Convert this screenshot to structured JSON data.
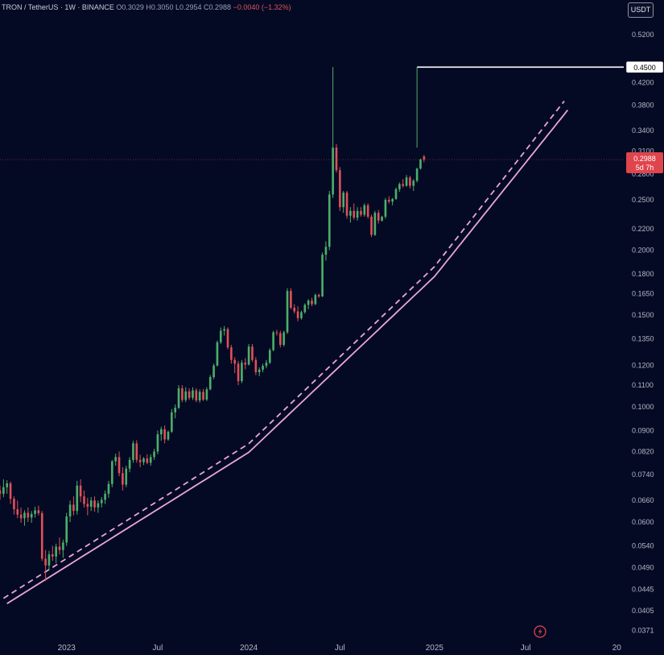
{
  "header": {
    "symbol": "TRON / TetherUS · 1W · BINANCE",
    "open": "O0.3029",
    "high": "H0.3050",
    "low": "L0.2954",
    "close": "C0.2988",
    "change": "−0.0040 (−1.32%)"
  },
  "currency_button": "USDT",
  "colors": {
    "background": "#050a24",
    "up": "#4caf6a",
    "down": "#e05058",
    "channel": "#e9a6d8",
    "level": "#ffffff",
    "last_price": "#e0444c"
  },
  "chart_data": {
    "type": "candlestick",
    "y_scale": "log",
    "ylim": [
      0.0355,
      0.56
    ],
    "xlim": [
      "2022-08-22",
      "2026-01-19"
    ],
    "yticks": [
      "0.5200",
      "0.4500",
      "0.4200",
      "0.3800",
      "0.3400",
      "0.3100",
      "0.2800",
      "0.2500",
      "0.2200",
      "0.2000",
      "0.1800",
      "0.1650",
      "0.1500",
      "0.1350",
      "0.1200",
      "0.1100",
      "0.1000",
      "0.0900",
      "0.0820",
      "0.0740",
      "0.0660",
      "0.0600",
      "0.0540",
      "0.0490",
      "0.0445",
      "0.0405",
      "0.0371"
    ],
    "xticks": [
      "2023",
      "Jul",
      "2024",
      "Jul",
      "2025",
      "Jul",
      "20"
    ],
    "horizontal_level": {
      "price": 0.45,
      "label": "0.4500",
      "from_date": "2024-12-02"
    },
    "last_price": {
      "label": "0.2988",
      "countdown": "5d 7h",
      "price": 0.2988
    },
    "channel": {
      "solid": [
        {
          "date": "2022-09-05",
          "price": 0.0418
        },
        {
          "date": "2024-01-01",
          "price": 0.0817
        },
        {
          "date": "2025-01-06",
          "price": 0.178
        },
        {
          "date": "2025-09-29",
          "price": 0.372
        }
      ],
      "dashed": [
        {
          "date": "2022-08-29",
          "price": 0.0428
        },
        {
          "date": "2024-01-01",
          "price": 0.0849
        },
        {
          "date": "2025-01-06",
          "price": 0.186
        },
        {
          "date": "2025-09-22",
          "price": 0.387
        }
      ]
    },
    "candles_start": "2022-08-22",
    "candles": [
      [
        0.069,
        0.0705,
        0.0662,
        0.068
      ],
      [
        0.068,
        0.0725,
        0.067,
        0.07
      ],
      [
        0.07,
        0.0722,
        0.068,
        0.0712
      ],
      [
        0.0712,
        0.0718,
        0.065,
        0.0665
      ],
      [
        0.0665,
        0.0672,
        0.062,
        0.0635
      ],
      [
        0.0635,
        0.066,
        0.061,
        0.062
      ],
      [
        0.062,
        0.064,
        0.0598,
        0.061
      ],
      [
        0.061,
        0.0632,
        0.059,
        0.0625
      ],
      [
        0.0625,
        0.064,
        0.06,
        0.0612
      ],
      [
        0.0612,
        0.063,
        0.0598,
        0.0622
      ],
      [
        0.0622,
        0.0642,
        0.0612,
        0.0632
      ],
      [
        0.0632,
        0.0645,
        0.0618,
        0.0624
      ],
      [
        0.0624,
        0.063,
        0.0505,
        0.051
      ],
      [
        0.051,
        0.053,
        0.0462,
        0.0495
      ],
      [
        0.0495,
        0.0528,
        0.0485,
        0.052
      ],
      [
        0.052,
        0.054,
        0.0505,
        0.0515
      ],
      [
        0.0515,
        0.0545,
        0.05,
        0.0538
      ],
      [
        0.0538,
        0.056,
        0.052,
        0.053
      ],
      [
        0.053,
        0.0555,
        0.0512,
        0.0548
      ],
      [
        0.0548,
        0.0625,
        0.054,
        0.0615
      ],
      [
        0.0615,
        0.066,
        0.06,
        0.0648
      ],
      [
        0.0648,
        0.0672,
        0.0618,
        0.063
      ],
      [
        0.063,
        0.072,
        0.062,
        0.0705
      ],
      [
        0.0705,
        0.0725,
        0.0655,
        0.0672
      ],
      [
        0.0672,
        0.069,
        0.064,
        0.065
      ],
      [
        0.065,
        0.0668,
        0.0618,
        0.0642
      ],
      [
        0.0642,
        0.067,
        0.063,
        0.066
      ],
      [
        0.066,
        0.0672,
        0.0628,
        0.064
      ],
      [
        0.064,
        0.066,
        0.0625,
        0.0652
      ],
      [
        0.0652,
        0.067,
        0.064,
        0.0662
      ],
      [
        0.0662,
        0.069,
        0.065,
        0.068
      ],
      [
        0.068,
        0.072,
        0.0668,
        0.071
      ],
      [
        0.071,
        0.079,
        0.07,
        0.0785
      ],
      [
        0.0785,
        0.0812,
        0.077,
        0.08
      ],
      [
        0.08,
        0.082,
        0.0735,
        0.0745
      ],
      [
        0.0745,
        0.0765,
        0.069,
        0.0708
      ],
      [
        0.0708,
        0.077,
        0.07,
        0.076
      ],
      [
        0.076,
        0.08,
        0.0748,
        0.079
      ],
      [
        0.079,
        0.086,
        0.078,
        0.085
      ],
      [
        0.085,
        0.0862,
        0.078,
        0.079
      ],
      [
        0.079,
        0.0808,
        0.0765,
        0.0782
      ],
      [
        0.0782,
        0.08,
        0.0772,
        0.0795
      ],
      [
        0.0795,
        0.081,
        0.0775,
        0.078
      ],
      [
        0.078,
        0.081,
        0.077,
        0.08
      ],
      [
        0.08,
        0.083,
        0.079,
        0.082
      ],
      [
        0.082,
        0.09,
        0.081,
        0.0885
      ],
      [
        0.0885,
        0.0915,
        0.086,
        0.0905
      ],
      [
        0.0905,
        0.092,
        0.085,
        0.0865
      ],
      [
        0.0865,
        0.09,
        0.086,
        0.0895
      ],
      [
        0.0895,
        0.099,
        0.089,
        0.0975
      ],
      [
        0.0975,
        0.101,
        0.095,
        0.0995
      ],
      [
        0.0995,
        0.11,
        0.099,
        0.1085
      ],
      [
        0.1085,
        0.11,
        0.102,
        0.103
      ],
      [
        0.103,
        0.109,
        0.102,
        0.107
      ],
      [
        0.107,
        0.1085,
        0.103,
        0.104
      ],
      [
        0.104,
        0.109,
        0.103,
        0.1075
      ],
      [
        0.1075,
        0.1085,
        0.102,
        0.1028
      ],
      [
        0.1028,
        0.108,
        0.1018,
        0.1068
      ],
      [
        0.1068,
        0.1082,
        0.1025,
        0.1032
      ],
      [
        0.1032,
        0.109,
        0.1025,
        0.108
      ],
      [
        0.108,
        0.115,
        0.1075,
        0.114
      ],
      [
        0.114,
        0.121,
        0.113,
        0.12
      ],
      [
        0.12,
        0.134,
        0.1195,
        0.133
      ],
      [
        0.133,
        0.142,
        0.132,
        0.14
      ],
      [
        0.14,
        0.143,
        0.137,
        0.141
      ],
      [
        0.141,
        0.142,
        0.129,
        0.13
      ],
      [
        0.13,
        0.1315,
        0.121,
        0.123
      ],
      [
        0.123,
        0.1245,
        0.116,
        0.121
      ],
      [
        0.121,
        0.1225,
        0.11,
        0.112
      ],
      [
        0.112,
        0.123,
        0.111,
        0.1215
      ],
      [
        0.1215,
        0.124,
        0.118,
        0.1205
      ],
      [
        0.1205,
        0.132,
        0.12,
        0.1305
      ],
      [
        0.1305,
        0.132,
        0.122,
        0.123
      ],
      [
        0.123,
        0.1245,
        0.115,
        0.1165
      ],
      [
        0.1165,
        0.119,
        0.1145,
        0.1178
      ],
      [
        0.1178,
        0.121,
        0.1165,
        0.1198
      ],
      [
        0.1198,
        0.123,
        0.1185,
        0.1215
      ],
      [
        0.1215,
        0.1295,
        0.1208,
        0.1285
      ],
      [
        0.1285,
        0.14,
        0.1278,
        0.139
      ],
      [
        0.139,
        0.1405,
        0.137,
        0.1385
      ],
      [
        0.1385,
        0.14,
        0.13,
        0.1315
      ],
      [
        0.1315,
        0.14,
        0.1305,
        0.139
      ],
      [
        0.139,
        0.169,
        0.138,
        0.167
      ],
      [
        0.167,
        0.169,
        0.154,
        0.155
      ],
      [
        0.155,
        0.1575,
        0.151,
        0.1525
      ],
      [
        0.1525,
        0.156,
        0.146,
        0.148
      ],
      [
        0.148,
        0.153,
        0.147,
        0.152
      ],
      [
        0.152,
        0.158,
        0.151,
        0.157
      ],
      [
        0.157,
        0.161,
        0.154,
        0.16
      ],
      [
        0.16,
        0.162,
        0.156,
        0.1575
      ],
      [
        0.1575,
        0.165,
        0.1568,
        0.164
      ],
      [
        0.164,
        0.165,
        0.162,
        0.163
      ],
      [
        0.163,
        0.198,
        0.1625,
        0.196
      ],
      [
        0.196,
        0.208,
        0.191,
        0.203
      ],
      [
        0.203,
        0.26,
        0.2,
        0.256
      ],
      [
        0.256,
        0.45,
        0.252,
        0.315
      ],
      [
        0.315,
        0.32,
        0.282,
        0.285
      ],
      [
        0.285,
        0.289,
        0.238,
        0.242
      ],
      [
        0.242,
        0.26,
        0.236,
        0.258
      ],
      [
        0.258,
        0.26,
        0.23,
        0.233
      ],
      [
        0.233,
        0.242,
        0.226,
        0.238
      ],
      [
        0.238,
        0.246,
        0.229,
        0.231
      ],
      [
        0.231,
        0.242,
        0.228,
        0.238
      ],
      [
        0.238,
        0.242,
        0.232,
        0.234
      ],
      [
        0.234,
        0.246,
        0.232,
        0.244
      ],
      [
        0.244,
        0.246,
        0.23,
        0.232
      ],
      [
        0.232,
        0.234,
        0.212,
        0.214
      ],
      [
        0.214,
        0.238,
        0.213,
        0.236
      ],
      [
        0.236,
        0.239,
        0.225,
        0.228
      ],
      [
        0.228,
        0.233,
        0.227,
        0.232
      ],
      [
        0.232,
        0.252,
        0.23,
        0.25
      ],
      [
        0.25,
        0.254,
        0.246,
        0.248
      ],
      [
        0.248,
        0.252,
        0.244,
        0.251
      ],
      [
        0.251,
        0.264,
        0.25,
        0.262
      ],
      [
        0.262,
        0.27,
        0.259,
        0.268
      ],
      [
        0.268,
        0.274,
        0.264,
        0.266
      ],
      [
        0.266,
        0.279,
        0.265,
        0.276
      ],
      [
        0.276,
        0.278,
        0.263,
        0.266
      ],
      [
        0.266,
        0.274,
        0.26,
        0.272
      ],
      [
        0.272,
        0.288,
        0.27,
        0.287
      ],
      [
        0.287,
        0.3,
        0.286,
        0.299
      ],
      [
        0.3029,
        0.305,
        0.2954,
        0.2988
      ]
    ]
  }
}
